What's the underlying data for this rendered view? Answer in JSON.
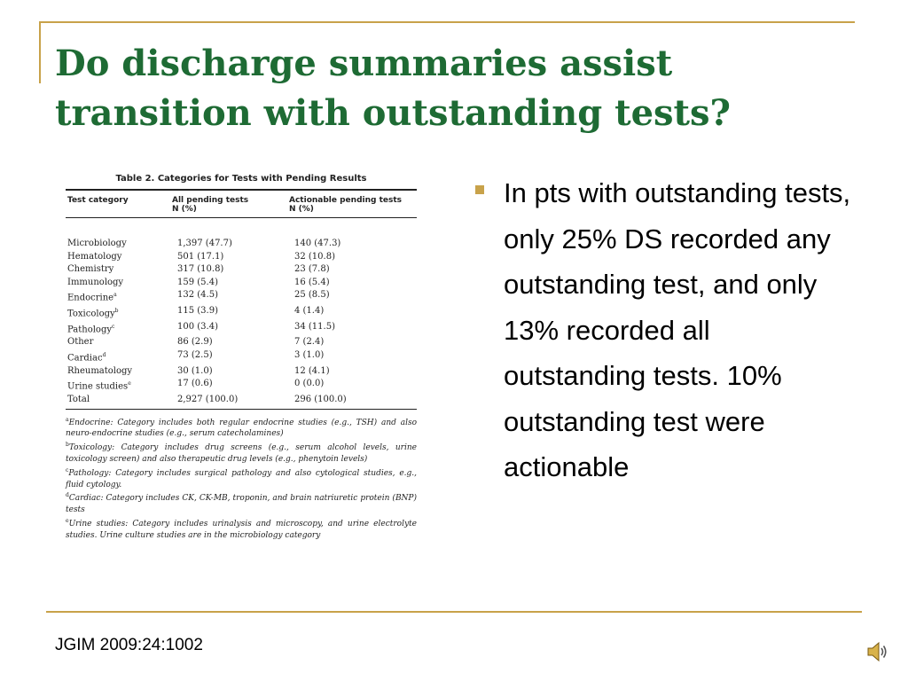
{
  "slide": {
    "title": "Do discharge summaries assist transition with outstanding tests?",
    "bullet_text": "In pts with outstanding tests, only 25% DS recorded any outstanding test, and only 13% recorded all outstanding tests. 10% outstanding test were actionable",
    "citation": "JGIM 2009:24:1002",
    "accent_color": "#c8a24a",
    "title_color": "#1e6b34",
    "audio_icon": "speaker-icon"
  },
  "table": {
    "caption": "Table 2.  Categories for Tests with Pending Results",
    "headers": {
      "col1": "Test category",
      "col2_line1": "All pending tests",
      "col2_line2": "N (%)",
      "col3_line1": "Actionable pending tests",
      "col3_line2": "N (%)"
    },
    "rows": [
      {
        "category": "Microbiology",
        "mark": "",
        "all": "1,397 (47.7)",
        "actionable": "140 (47.3)"
      },
      {
        "category": "Hematology",
        "mark": "",
        "all": "501 (17.1)",
        "actionable": "32 (10.8)"
      },
      {
        "category": "Chemistry",
        "mark": "",
        "all": "317 (10.8)",
        "actionable": "23 (7.8)"
      },
      {
        "category": "Immunology",
        "mark": "",
        "all": "159 (5.4)",
        "actionable": "16 (5.4)"
      },
      {
        "category": "Endocrine",
        "mark": "a",
        "all": "132 (4.5)",
        "actionable": "25 (8.5)"
      },
      {
        "category": "Toxicology",
        "mark": "b",
        "all": "115 (3.9)",
        "actionable": "4 (1.4)"
      },
      {
        "category": "Pathology",
        "mark": "c",
        "all": "100 (3.4)",
        "actionable": "34 (11.5)"
      },
      {
        "category": "Other",
        "mark": "",
        "all": "86 (2.9)",
        "actionable": "7 (2.4)"
      },
      {
        "category": "Cardiac",
        "mark": "d",
        "all": "73 (2.5)",
        "actionable": "3 (1.0)"
      },
      {
        "category": "Rheumatology",
        "mark": "",
        "all": "30 (1.0)",
        "actionable": "12 (4.1)"
      },
      {
        "category": "Urine studies",
        "mark": "e",
        "all": "17 (0.6)",
        "actionable": "0 (0.0)"
      },
      {
        "category": "Total",
        "mark": "",
        "all": "2,927 (100.0)",
        "actionable": "296 (100.0)"
      }
    ],
    "footnotes": [
      {
        "mark": "a",
        "text": "Endocrine: Category includes both regular endocrine studies (e.g., TSH) and also neuro-endocrine studies (e.g., serum catecholamines)"
      },
      {
        "mark": "b",
        "text": "Toxicology: Category includes drug screens (e.g., serum alcohol levels, urine toxicology screen) and also therapeutic drug levels (e.g., phenytoin levels)"
      },
      {
        "mark": "c",
        "text": "Pathology: Category includes surgical pathology and also cytological studies, e.g., fluid cytology."
      },
      {
        "mark": "d",
        "text": "Cardiac: Category includes CK, CK-MB, troponin, and brain natriuretic protein (BNP) tests"
      },
      {
        "mark": "e",
        "text": "Urine studies: Category includes urinalysis and microscopy, and urine electrolyte studies. Urine culture studies are in the microbiology category"
      }
    ]
  }
}
